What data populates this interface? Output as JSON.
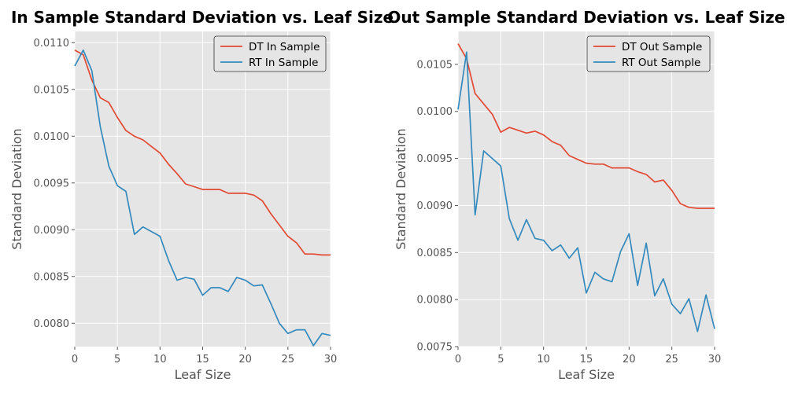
{
  "chart_data": [
    {
      "type": "line",
      "title": "In Sample Standard Deviation vs. Leaf Size",
      "xlabel": "Leaf Size",
      "ylabel": "Standard Deviation",
      "xlim": [
        0,
        30
      ],
      "ylim": [
        0.00775,
        0.01112
      ],
      "xticks": [
        "0",
        "5",
        "10",
        "15",
        "20",
        "25",
        "30"
      ],
      "yticks": [
        "0.0080",
        "0.0085",
        "0.0090",
        "0.0095",
        "0.0100",
        "0.0105",
        "0.0110"
      ],
      "grid": true,
      "legend_position": "top-right",
      "x": [
        0,
        1,
        2,
        3,
        4,
        5,
        6,
        7,
        8,
        9,
        10,
        11,
        12,
        13,
        14,
        15,
        16,
        17,
        18,
        19,
        20,
        21,
        22,
        23,
        24,
        25,
        26,
        27,
        28,
        29,
        30
      ],
      "series": [
        {
          "name": "DT In Sample",
          "color": "#E24A33",
          "values": [
            0.01092,
            0.01087,
            0.0106,
            0.01041,
            0.01036,
            0.0102,
            0.01006,
            0.01,
            0.00996,
            0.00989,
            0.00982,
            0.0097,
            0.0096,
            0.00949,
            0.00946,
            0.00943,
            0.00943,
            0.00943,
            0.00939,
            0.00939,
            0.00939,
            0.00937,
            0.00931,
            0.00917,
            0.00905,
            0.00893,
            0.00886,
            0.00874,
            0.00874,
            0.00873,
            0.00873
          ]
        },
        {
          "name": "RT In Sample",
          "color": "#348ABD",
          "values": [
            0.01075,
            0.01092,
            0.0107,
            0.0101,
            0.00968,
            0.00947,
            0.00941,
            0.00895,
            0.00903,
            0.00898,
            0.00893,
            0.00867,
            0.00846,
            0.00849,
            0.00847,
            0.0083,
            0.00838,
            0.00838,
            0.00834,
            0.00849,
            0.00846,
            0.0084,
            0.00841,
            0.00821,
            0.008,
            0.00789,
            0.00793,
            0.00793,
            0.00776,
            0.00789,
            0.00787
          ]
        }
      ]
    },
    {
      "type": "line",
      "title": "Out Sample Standard Deviation vs. Leaf Size",
      "xlabel": "Leaf Size",
      "ylabel": "Standard Deviation",
      "xlim": [
        0,
        30
      ],
      "ylim": [
        0.0075,
        0.01085
      ],
      "xticks": [
        "0",
        "5",
        "10",
        "15",
        "20",
        "25",
        "30"
      ],
      "yticks": [
        "0.0075",
        "0.0080",
        "0.0085",
        "0.0090",
        "0.0095",
        "0.0100",
        "0.0105"
      ],
      "grid": true,
      "legend_position": "top-right",
      "x": [
        0,
        1,
        2,
        3,
        4,
        5,
        6,
        7,
        8,
        9,
        10,
        11,
        12,
        13,
        14,
        15,
        16,
        17,
        18,
        19,
        20,
        21,
        22,
        23,
        24,
        25,
        26,
        27,
        28,
        29,
        30
      ],
      "series": [
        {
          "name": "DT Out Sample",
          "color": "#E24A33",
          "values": [
            0.01072,
            0.01056,
            0.01019,
            0.01008,
            0.00997,
            0.00978,
            0.00983,
            0.0098,
            0.00977,
            0.00979,
            0.00975,
            0.00968,
            0.00964,
            0.00953,
            0.00949,
            0.00945,
            0.00944,
            0.00944,
            0.0094,
            0.0094,
            0.0094,
            0.00936,
            0.00933,
            0.00925,
            0.00927,
            0.00916,
            0.00902,
            0.00898,
            0.00897,
            0.00897,
            0.00897
          ]
        },
        {
          "name": "RT Out Sample",
          "color": "#348ABD",
          "values": [
            0.01002,
            0.01063,
            0.0089,
            0.00958,
            0.0095,
            0.00942,
            0.00886,
            0.00863,
            0.00885,
            0.00865,
            0.00863,
            0.00852,
            0.00858,
            0.00844,
            0.00855,
            0.00807,
            0.00829,
            0.00822,
            0.00819,
            0.00851,
            0.0087,
            0.00815,
            0.0086,
            0.00804,
            0.00822,
            0.00795,
            0.00785,
            0.00801,
            0.00766,
            0.00805,
            0.00769
          ]
        }
      ]
    }
  ]
}
